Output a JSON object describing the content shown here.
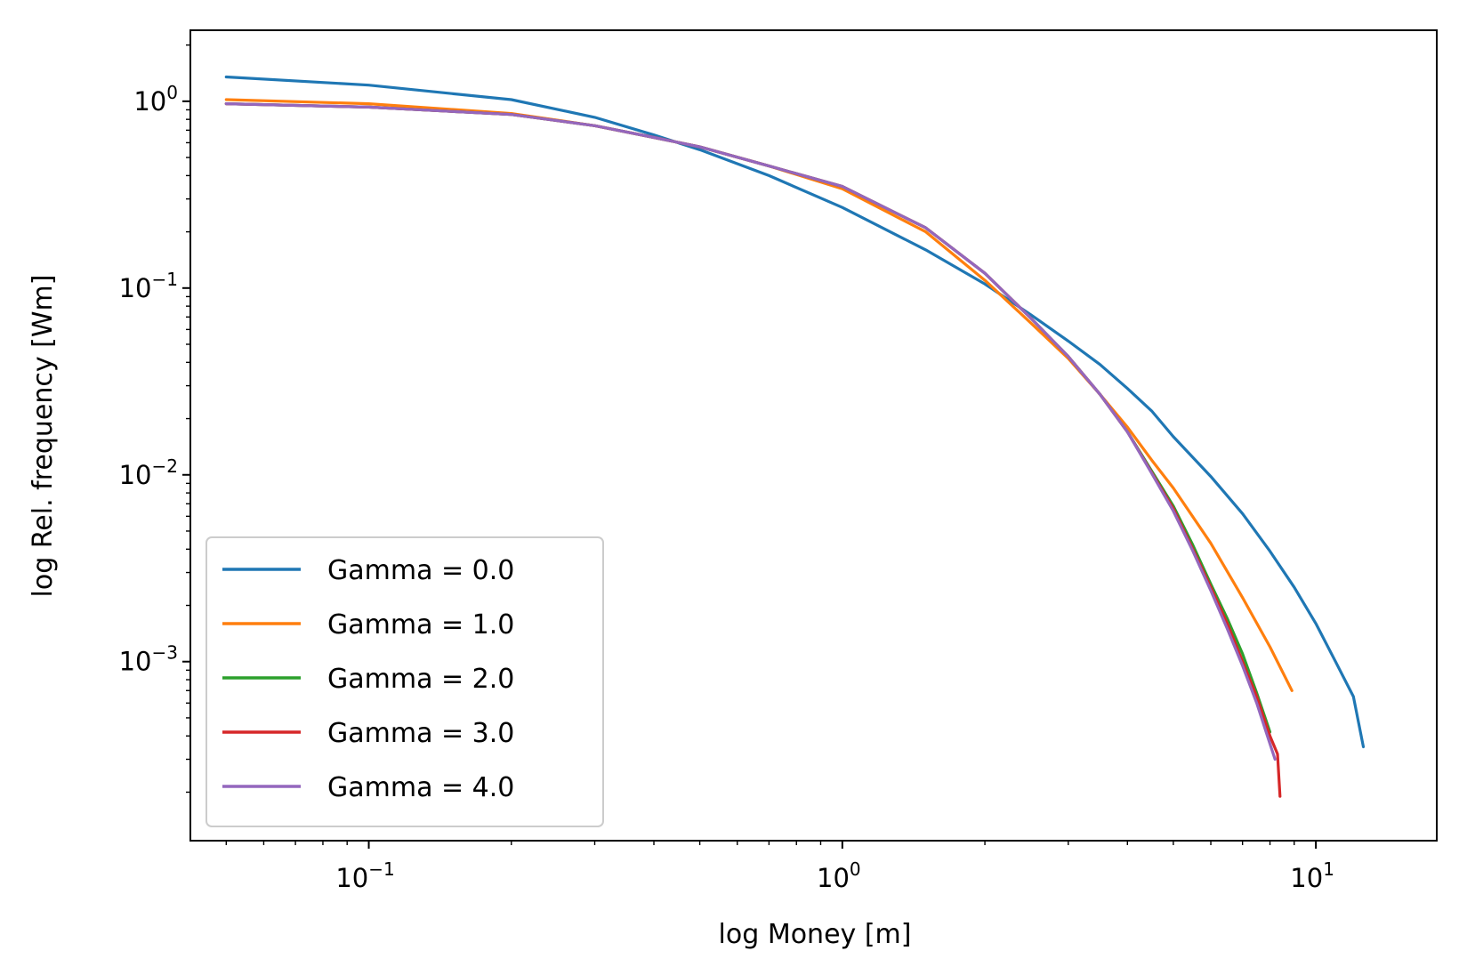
{
  "chart_data": {
    "type": "line",
    "title": "",
    "xlabel": "log Money [m]",
    "ylabel": "log Rel. frequency [Wm]",
    "xscale": "log",
    "yscale": "log",
    "xlim": [
      0.042,
      18
    ],
    "ylim": [
      0.00011,
      2.4
    ],
    "grid": false,
    "legend_position": "lower-left",
    "x_ticks": [
      {
        "base": "10",
        "exp": "−1",
        "value": 0.1
      },
      {
        "base": "10",
        "exp": "0",
        "value": 1
      },
      {
        "base": "10",
        "exp": "1",
        "value": 10
      }
    ],
    "y_ticks": [
      {
        "base": "10",
        "exp": "0",
        "value": 1
      },
      {
        "base": "10",
        "exp": "−1",
        "value": 0.1
      },
      {
        "base": "10",
        "exp": "−2",
        "value": 0.01
      },
      {
        "base": "10",
        "exp": "−3",
        "value": 0.001
      }
    ],
    "series": [
      {
        "name": "Gamma = 0.0",
        "color": "#1f77b4",
        "x": [
          0.05,
          0.1,
          0.2,
          0.3,
          0.4,
          0.5,
          0.7,
          1.0,
          1.5,
          2.0,
          2.5,
          3.0,
          3.5,
          4.0,
          4.5,
          5.0,
          6.0,
          7.0,
          8.0,
          9.0,
          10.0,
          11.0,
          12.0,
          12.6
        ],
        "y": [
          1.35,
          1.22,
          1.02,
          0.82,
          0.66,
          0.55,
          0.4,
          0.27,
          0.16,
          0.105,
          0.072,
          0.052,
          0.039,
          0.029,
          0.022,
          0.016,
          0.0098,
          0.0062,
          0.0039,
          0.0025,
          0.0016,
          0.001,
          0.00065,
          0.00035
        ]
      },
      {
        "name": "Gamma = 1.0",
        "color": "#ff7f0e",
        "x": [
          0.05,
          0.1,
          0.2,
          0.3,
          0.4,
          0.5,
          0.7,
          1.0,
          1.5,
          2.0,
          2.5,
          3.0,
          3.5,
          4.0,
          4.5,
          5.0,
          6.0,
          7.0,
          8.0,
          8.9
        ],
        "y": [
          1.02,
          0.97,
          0.86,
          0.74,
          0.64,
          0.57,
          0.45,
          0.34,
          0.2,
          0.11,
          0.065,
          0.042,
          0.027,
          0.018,
          0.012,
          0.0085,
          0.0043,
          0.0022,
          0.0012,
          0.0007
        ]
      },
      {
        "name": "Gamma = 2.0",
        "color": "#2ca02c",
        "x": [
          0.05,
          0.1,
          0.2,
          0.3,
          0.4,
          0.5,
          0.7,
          1.0,
          1.5,
          2.0,
          2.5,
          3.0,
          3.5,
          4.0,
          4.5,
          5.0,
          5.5,
          6.0,
          6.5,
          7.0,
          7.5,
          8.0
        ],
        "y": [
          0.97,
          0.93,
          0.85,
          0.74,
          0.64,
          0.57,
          0.45,
          0.35,
          0.21,
          0.12,
          0.069,
          0.043,
          0.027,
          0.017,
          0.0105,
          0.0068,
          0.0042,
          0.0026,
          0.0017,
          0.0011,
          0.00068,
          0.00042
        ]
      },
      {
        "name": "Gamma = 3.0",
        "color": "#d62728",
        "x": [
          0.05,
          0.1,
          0.2,
          0.3,
          0.4,
          0.5,
          0.7,
          1.0,
          1.5,
          2.0,
          2.5,
          3.0,
          3.5,
          4.0,
          4.5,
          5.0,
          5.5,
          6.0,
          6.5,
          7.0,
          7.5,
          8.0,
          8.3,
          8.4
        ],
        "y": [
          0.97,
          0.93,
          0.85,
          0.74,
          0.64,
          0.57,
          0.45,
          0.35,
          0.21,
          0.12,
          0.069,
          0.043,
          0.027,
          0.017,
          0.0103,
          0.0066,
          0.004,
          0.0025,
          0.0016,
          0.001,
          0.00065,
          0.0004,
          0.00032,
          0.00019
        ]
      },
      {
        "name": "Gamma = 4.0",
        "color": "#9467bd",
        "x": [
          0.05,
          0.1,
          0.2,
          0.3,
          0.4,
          0.5,
          0.7,
          1.0,
          1.5,
          2.0,
          2.5,
          3.0,
          3.5,
          4.0,
          4.5,
          5.0,
          5.5,
          6.0,
          6.5,
          7.0,
          7.5,
          7.9,
          8.2
        ],
        "y": [
          0.97,
          0.93,
          0.85,
          0.74,
          0.64,
          0.57,
          0.45,
          0.35,
          0.21,
          0.12,
          0.069,
          0.043,
          0.027,
          0.017,
          0.0102,
          0.0064,
          0.0039,
          0.0024,
          0.0015,
          0.00095,
          0.0006,
          0.0004,
          0.0003
        ]
      }
    ]
  }
}
